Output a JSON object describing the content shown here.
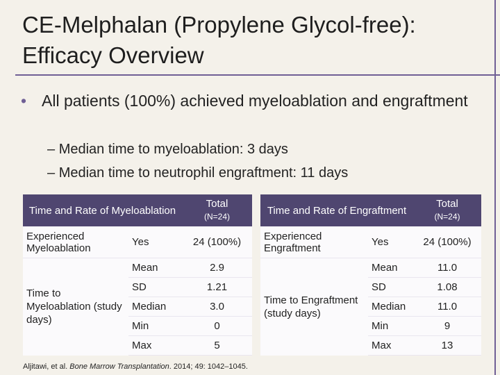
{
  "slide": {
    "title": [
      "CE-Melphalan (Propylene Glycol-free):",
      "Efficacy Overview"
    ],
    "bullet": "All patients (100%) achieved myeloablation and engraftment",
    "sub_bullets": [
      "Median time to myeloablation: 3 days",
      "Median time to neutrophil engraftment: 11 days"
    ],
    "tables": [
      {
        "header": "Time and Rate of Myeloablation",
        "total": "Total",
        "n": "(N=24)",
        "first_row": [
          "Experienced Myeloablation",
          "Yes",
          "24 (100%)"
        ],
        "group_label": "Time to Myeloablation (study days)",
        "stats": [
          [
            "Mean",
            "2.9"
          ],
          [
            "SD",
            "1.21"
          ],
          [
            "Median",
            "3.0"
          ],
          [
            "Min",
            "0"
          ],
          [
            "Max",
            "5"
          ]
        ]
      },
      {
        "header": "Time and Rate of Engraftment",
        "total": "Total",
        "n": "(N=24)",
        "first_row": [
          "Experienced Engraftment",
          "Yes",
          "24 (100%)"
        ],
        "group_label": "Time to Engraftment (study days)",
        "stats": [
          [
            "Mean",
            "11.0"
          ],
          [
            "SD",
            "1.08"
          ],
          [
            "Median",
            "11.0"
          ],
          [
            "Min",
            "9"
          ],
          [
            "Max",
            "13"
          ]
        ]
      }
    ],
    "citation": {
      "authors": "Aljitawi, et al.",
      "journal": "Bone Marrow Transplantation",
      "details": ". 2014; 49: 1042–1045."
    }
  }
}
